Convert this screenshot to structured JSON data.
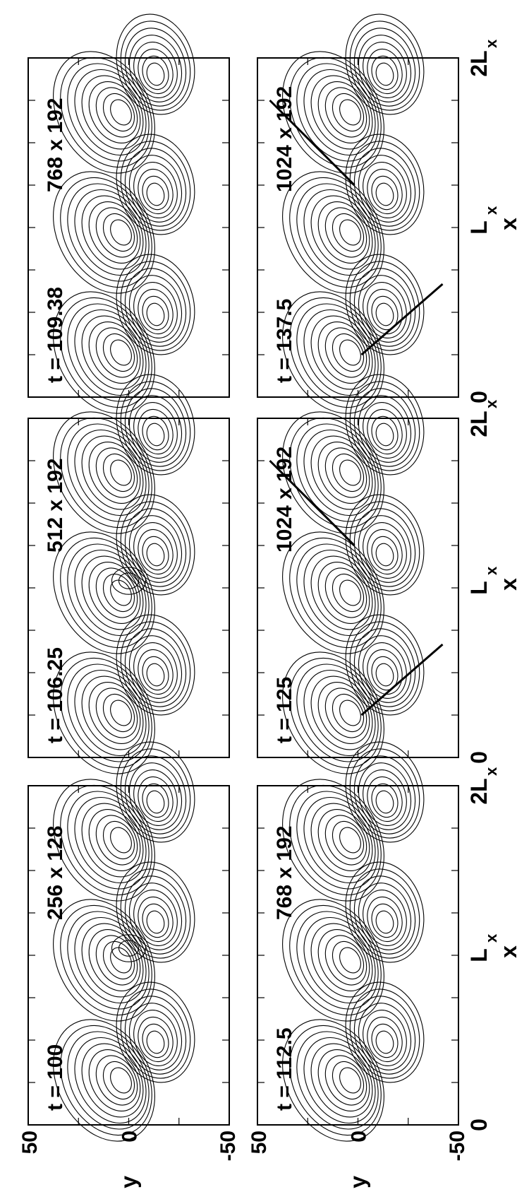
{
  "figure": {
    "rotation": "90deg counter-clockwise (landscape page)",
    "colors": {
      "ink": "#000000",
      "background": "#ffffff"
    }
  },
  "chart_data": [
    {
      "type": "contour",
      "row": 1,
      "col": 1,
      "time_label": "t = 100",
      "grid_label": "256 x 128",
      "xlabel": "x",
      "x_ticks": [
        "0",
        "L",
        "2L"
      ],
      "x_tick_subscript": "x",
      "ylabel": "y",
      "y_ticks": [
        "50",
        "0",
        "-50"
      ],
      "ylim": [
        -50,
        50
      ],
      "xlim": [
        "0",
        "2Lx"
      ]
    },
    {
      "type": "contour",
      "row": 1,
      "col": 2,
      "time_label": "t = 106.25",
      "grid_label": "512 x 192",
      "xlabel": "x",
      "x_ticks": [
        "0",
        "L",
        "2L"
      ],
      "x_tick_subscript": "x"
    },
    {
      "type": "contour",
      "row": 1,
      "col": 3,
      "time_label": "t = 109.38",
      "grid_label": "768 x 192",
      "xlabel": "x",
      "x_ticks": [
        "0",
        "L",
        "2L"
      ],
      "x_tick_subscript": "x"
    },
    {
      "type": "contour",
      "row": 2,
      "col": 1,
      "time_label": "t = 112.5",
      "grid_label": "768 x 192",
      "xlabel": "x",
      "x_ticks": [
        "0",
        "L",
        "2L"
      ],
      "x_tick_subscript": "x",
      "ylabel": "y",
      "y_ticks": [
        "50",
        "0",
        "-50"
      ],
      "ylim": [
        -50,
        50
      ],
      "xlim": [
        "0",
        "2Lx"
      ]
    },
    {
      "type": "contour",
      "row": 2,
      "col": 2,
      "time_label": "t = 125",
      "grid_label": "1024 x 192",
      "xlabel": "x",
      "x_ticks": [
        "0",
        "L",
        "2L"
      ],
      "x_tick_subscript": "x"
    },
    {
      "type": "contour",
      "row": 2,
      "col": 3,
      "time_label": "t = 137.5",
      "grid_label": "1024 x 192",
      "xlabel": "x",
      "x_ticks": [
        "0",
        "L",
        "2L"
      ],
      "x_tick_subscript": "x"
    }
  ]
}
